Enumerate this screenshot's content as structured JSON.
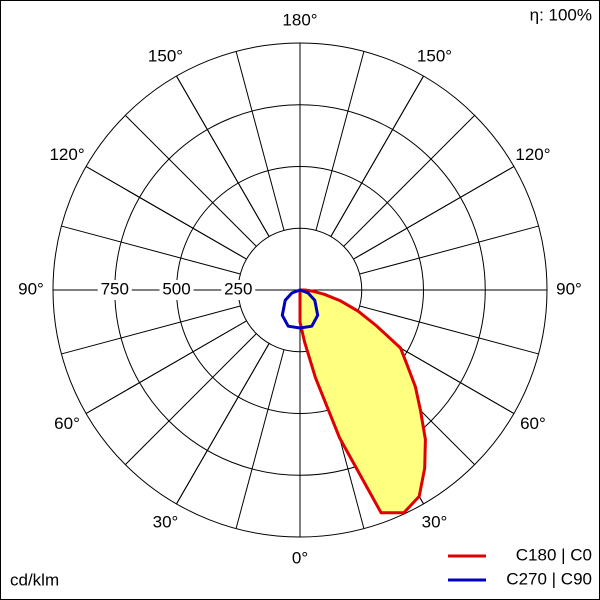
{
  "chart_data": {
    "type": "polar",
    "annotations": [
      "η: 100%",
      "cd/klm"
    ],
    "rlim": [
      0,
      1000
    ],
    "rticks": [
      250,
      500,
      750
    ],
    "angle_ticks": [
      {
        "value": 0,
        "label": "0°"
      },
      {
        "value": 30,
        "label": "30°"
      },
      {
        "value": 60,
        "label": "60°"
      },
      {
        "value": 90,
        "label": "90°"
      },
      {
        "value": 120,
        "label": "120°"
      },
      {
        "value": 150,
        "label": "150°"
      },
      {
        "value": 180,
        "label": "180°"
      },
      {
        "value": -150,
        "label": "150°"
      },
      {
        "value": -120,
        "label": "120°"
      },
      {
        "value": -90,
        "label": "90°"
      },
      {
        "value": -60,
        "label": "60°"
      },
      {
        "value": -30,
        "label": "30°"
      }
    ],
    "grid": true,
    "series": [
      {
        "name": "C180 | C0",
        "color": "#e00000",
        "fill": "#ffff80",
        "x": [
          0,
          5,
          10,
          15,
          20,
          25,
          30,
          35,
          40,
          45,
          50,
          55,
          60,
          65,
          70,
          75,
          80,
          85,
          90
        ],
        "values": [
          130,
          210,
          360,
          620,
          960,
          995,
          965,
          880,
          790,
          690,
          610,
          530,
          470,
          340,
          250,
          170,
          100,
          50,
          20
        ]
      },
      {
        "name": "C270 | C90",
        "color": "#0000c0",
        "x": [
          -90,
          -70,
          -55,
          -35,
          -18,
          0,
          18,
          35,
          55,
          70,
          90
        ],
        "values": [
          0,
          35,
          73,
          125,
          154,
          154,
          154,
          125,
          73,
          35,
          0
        ]
      }
    ]
  }
}
